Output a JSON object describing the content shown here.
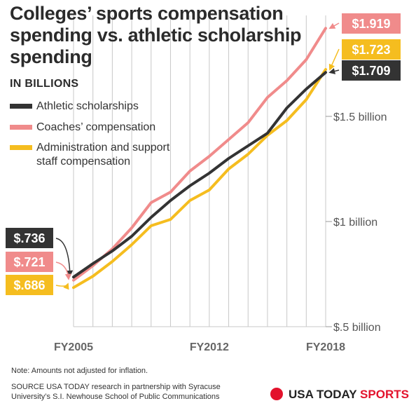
{
  "title": "Colleges’ sports compensation spending vs. athletic scholarship spending",
  "units_label": "IN BILLIONS",
  "note": "Note: Amounts not adjusted for inflation.",
  "source": "SOURCE USA TODAY research in partnership with Syracuse University’s S.I. Newhouse School of Public Communications",
  "brand": {
    "name": "USA TODAY",
    "sports": "SPORTS",
    "color": "#e3122c"
  },
  "chart_data": {
    "type": "line",
    "x": [
      2005,
      2006,
      2007,
      2008,
      2009,
      2010,
      2011,
      2012,
      2013,
      2014,
      2015,
      2016,
      2017,
      2018
    ],
    "x_tick_labels": [
      "FY2005",
      "FY2012",
      "FY2018"
    ],
    "y_tick_labels": [
      "$1.5 billion",
      "$1 billion",
      "$.5 billion"
    ],
    "ylim": [
      0.5,
      1.95
    ],
    "grid": "vertical",
    "legend_position": "top-left",
    "series": [
      {
        "name": "Athletic scholarships",
        "color": "#333333",
        "values": [
          0.736,
          0.8,
          0.86,
          0.93,
          1.02,
          1.1,
          1.17,
          1.23,
          1.3,
          1.36,
          1.42,
          1.54,
          1.63,
          1.709
        ],
        "start_label": "$.736",
        "end_label": "$1.709"
      },
      {
        "name": "Coaches’ compensation",
        "color": "#f08b8b",
        "values": [
          0.721,
          0.79,
          0.87,
          0.97,
          1.09,
          1.14,
          1.24,
          1.31,
          1.39,
          1.47,
          1.59,
          1.67,
          1.77,
          1.919
        ],
        "start_label": "$.721",
        "end_label": "$1.919"
      },
      {
        "name": "Administration and support staff compensation",
        "color": "#f5bd1f",
        "values": [
          0.686,
          0.74,
          0.81,
          0.89,
          0.98,
          1.01,
          1.1,
          1.15,
          1.25,
          1.32,
          1.41,
          1.48,
          1.58,
          1.723
        ],
        "start_label": "$.686",
        "end_label": "$1.723"
      }
    ]
  }
}
